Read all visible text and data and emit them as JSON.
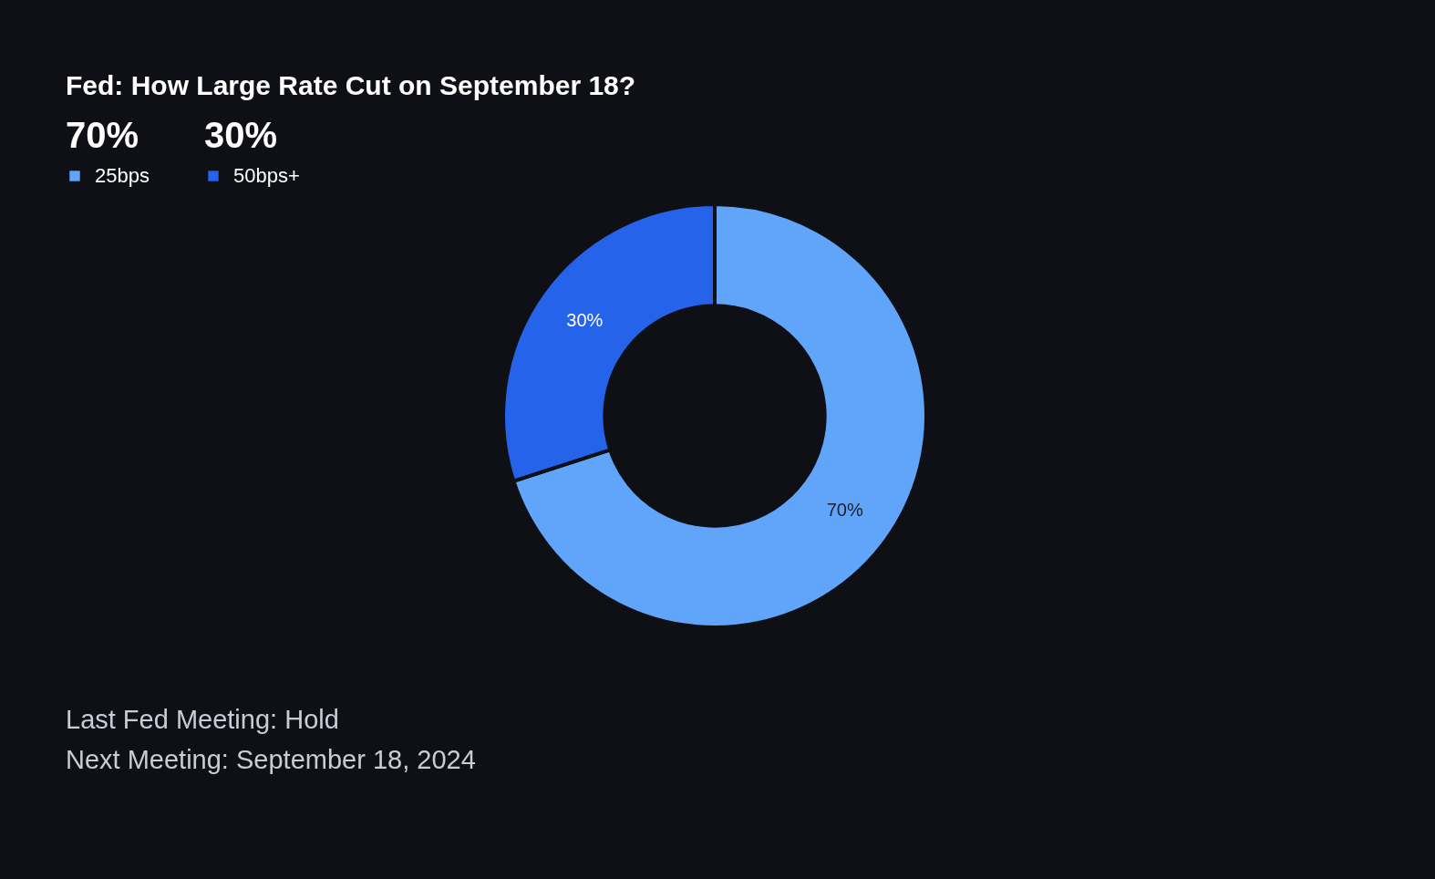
{
  "chart_data": {
    "type": "donut",
    "title": "Fed: How Large Rate Cut on September 18?",
    "categories": [
      "25bps",
      "50bps+"
    ],
    "values": [
      70,
      30
    ],
    "colors": [
      "#60a5fa",
      "#2563eb"
    ],
    "value_labels": [
      "70%",
      "30%"
    ],
    "legend": "top left",
    "annotations": [
      "Last Fed Meeting: Hold",
      "Next Meeting: September 18, 2024"
    ]
  }
}
